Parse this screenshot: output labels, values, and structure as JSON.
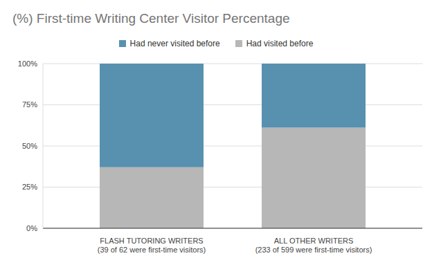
{
  "chart_data": {
    "type": "bar",
    "title": "(%) First-time Writing Center Visitor Percentage",
    "categories": [
      "FLASH TUTORING WRITERS\n(39 of 62 were first-time visitors)",
      "ALL OTHER WRITERS\n(233 of 599 were first-time visitors)"
    ],
    "series": [
      {
        "name": "Had never visited before",
        "color": "#5891b0",
        "values": [
          62.9,
          38.9
        ]
      },
      {
        "name": "Had visited before",
        "color": "#b7b7b7",
        "values": [
          37.1,
          61.1
        ]
      }
    ],
    "stacked": true,
    "legend": "top",
    "grid": true,
    "ylim": [
      0,
      100
    ],
    "yticks": [
      {
        "value": 0,
        "label": "0%"
      },
      {
        "value": 25,
        "label": "25%"
      },
      {
        "value": 50,
        "label": "50%"
      },
      {
        "value": 75,
        "label": "75%"
      },
      {
        "value": 100,
        "label": "100%"
      }
    ]
  }
}
